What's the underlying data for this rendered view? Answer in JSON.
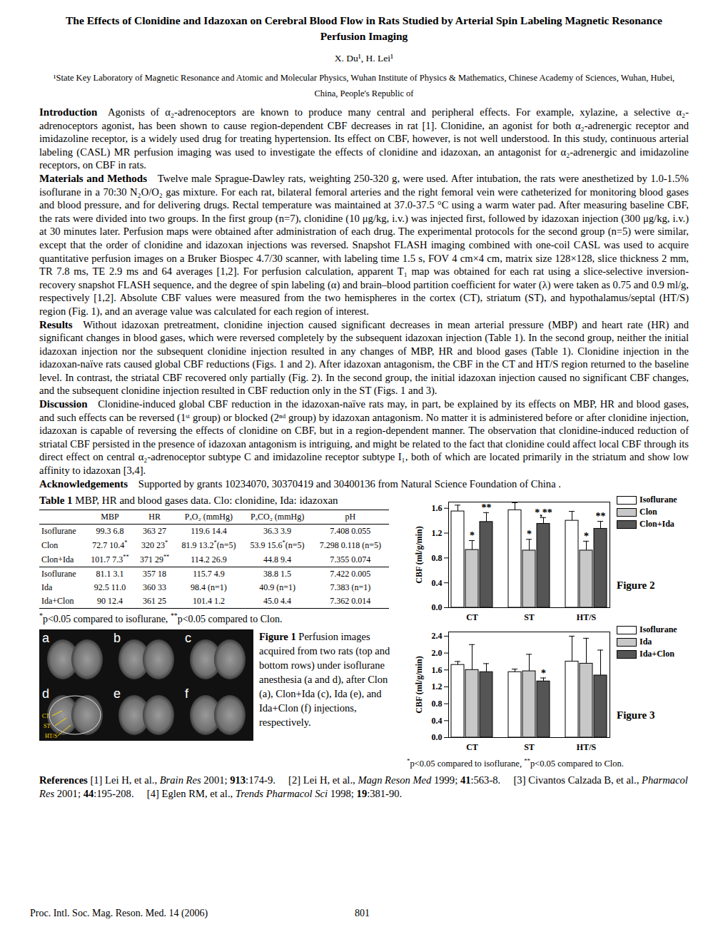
{
  "title": "The Effects of Clonidine and Idazoxan on Cerebral Blood Flow in Rats Studied by Arterial Spin Labeling Magnetic Resonance Perfusion Imaging",
  "authors": "X. Du¹, H. Lei¹",
  "affiliation": "¹State Key Laboratory of Magnetic Resonance and Atomic and Molecular Physics, Wuhan Institute of Physics & Mathematics, Chinese Academy of Sciences, Wuhan, Hubei, China, People's Republic of",
  "sections": [
    {
      "heading": "Introduction",
      "text": "Agonists of α₂-adrenoceptors are known to produce many central and peripheral effects. For example, xylazine, a selective α₂-adrenoceptors agonist, has been shown to cause region-dependent CBF decreases in rat [1]. Clonidine, an agonist for both α₂-adrenergic receptor and imidazoline receptor, is a widely used drug for treating hypertension. Its effect on CBF, however, is not well understood. In this study, continuous arterial labeling (CASL) MR perfusion imaging was used to investigate the effects of clonidine and idazoxan, an antagonist for α₂-adrenergic and imidazoline receptors, on CBF in rats."
    },
    {
      "heading": "Materials and Methods",
      "text": "Twelve male Sprague-Dawley rats, weighting 250-320 g, were used. After intubation, the rats were anesthetized by 1.0-1.5% isoflurane in a 70:30 N₂O/O₂ gas mixture. For each rat, bilateral femoral arteries and the right femoral vein were catheterized for monitoring blood gases and blood pressure, and for delivering drugs. Rectal temperature was maintained at 37.0-37.5 °C using a warm water pad. After measuring baseline CBF, the rats were divided into two groups. In the first group (n=7), clonidine (10 μg/kg, i.v.) was injected first, followed by idazoxan injection (300 μg/kg, i.v.) at 30 minutes later. Perfusion maps were obtained after administration of each drug. The experimental protocols for the second group (n=5) were similar, except that the order of clonidine and idazoxan injections was reversed. Snapshot FLASH imaging combined with one-coil CASL was used to acquire quantitative perfusion images on a Bruker Biospec 4.7/30 scanner, with labeling time 1.5 s, FOV 4 cm×4 cm, matrix size 128×128, slice thickness 2 mm, TR 7.8 ms, TE 2.9 ms and 64 averages [1,2]. For perfusion calculation, apparent T₁ map was obtained for each rat using a slice-selective inversion-recovery snapshot FLASH sequence, and the degree of spin labeling (α) and brain–blood partition coefficient for water (λ) were taken as 0.75 and 0.9 ml/g, respectively [1,2]. Absolute CBF values were measured from the two hemispheres in the cortex (CT), striatum (ST), and hypothalamus/septal (HT/S) region (Fig. 1), and an average value was calculated for each region of interest."
    },
    {
      "heading": "Results",
      "text": "Without idazoxan pretreatment, clonidine injection caused significant decreases in mean arterial pressure (MBP) and heart rate (HR) and significant changes in blood gases, which were reversed completely by the subsequent idazoxan injection (Table 1). In the second group, neither the initial idazoxan injection nor the subsequent clonidine injection resulted in any changes of MBP, HR and blood gases (Table 1). Clonidine injection in the idazoxan-naïve rats caused global CBF reductions (Figs. 1 and 2). After idazoxan antagonism, the CBF in the CT and HT/S region returned to the baseline level. In contrast, the striatal CBF recovered only partially (Fig. 2). In the second group, the initial idazoxan injection caused no significant CBF changes, and the subsequent clonidine injection resulted in CBF reduction only in the ST (Figs. 1 and 3)."
    },
    {
      "heading": "Discussion",
      "text": "Clonidine-induced global CBF reduction in the idazoxan-naïve rats may, in part, be explained by its effects on MBP, HR and blood gases, and such effects can be reversed (1ˢᵗ group) or blocked (2ⁿᵈ group) by idazoxan antagonism. No matter it is administered before or after clonidine injection, idazoxan is capable of reversing the effects of clonidine on CBF, but in a region-dependent manner. The observation that clonidine-induced reduction of striatal CBF persisted in the presence of idazoxan antagonism is intriguing, and might be related to the fact that clonidine could affect local CBF through its direct effect on central α₂-adrenoceptor subtype C and imidazoline receptor subtype I₁, both of which are located primarily in the striatum and show low affinity to idazoxan [3,4]."
    },
    {
      "heading": "Acknowledgements",
      "text": "Supported by grants 10234070, 30370419 and 30400136 from Natural Science Foundation of China ."
    }
  ],
  "table": {
    "label": "Table 1",
    "caption": "MBP, HR and blood gases data. Clo: clonidine, Ida: idazoxan",
    "header": [
      null,
      "MBP",
      "HR",
      "PₐO₂ (mmHg)",
      "PₐCO₂ (mmHg)",
      "pH"
    ],
    "groups": [
      [
        [
          "Isoflurane",
          "99.3 6.8",
          "363 27",
          "119.6 14.4",
          "36.3 3.9",
          "7.408 0.055"
        ],
        [
          "Clon",
          "72.7 10.4*",
          "320 23*",
          "81.9 13.2*(n=5)",
          "53.9 15.6*(n=5)",
          "7.298 0.118 (n=5)"
        ],
        [
          "Clon+Ida",
          "101.7 7.3**",
          "371 29**",
          "114.2 26.9",
          "44.8 9.4",
          "7.355 0.074"
        ]
      ],
      [
        [
          "Isoflurane",
          "81.1 3.1",
          "357 18",
          "115.7 4.9",
          "38.8 1.5",
          "7.422 0.005"
        ],
        [
          "Ida",
          "92.5 11.0",
          "360 33",
          "98.4 (n=1)",
          "40.9 (n=1)",
          "7.383 (n=1)"
        ],
        [
          "Ida+Clon",
          "90 12.4",
          "361 25",
          "101.4 1.2",
          "45.0 4.4",
          "7.362 0.014"
        ]
      ]
    ],
    "footnote": "*p<0.05 compared to isoflurane, **p<0.05 compared to Clon."
  },
  "figure1": {
    "label": "Figure 1",
    "caption": "Perfusion images acquired from two rats (top and bottom rows) under isoflurane anesthesia (a and d), after Clon (a), Clon+Ida (c), Ida (e), and Ida+Clon (f) injections, respectively.",
    "panels": [
      "a",
      "b",
      "c",
      "d",
      "e",
      "f"
    ],
    "roi_labels": [
      "CT",
      "ST",
      "HT/S"
    ]
  },
  "chart_data": [
    {
      "type": "bar",
      "title": "Figure 2",
      "categories": [
        "CT",
        "ST",
        "HT/S"
      ],
      "ylabel": "CBF (ml/g/min)",
      "ylim": [
        0,
        1.7
      ],
      "yticks": [
        {
          "value": 0,
          "label": "0.0"
        },
        {
          "value": 0.4,
          "label": "0.4"
        },
        {
          "value": 0.8,
          "label": "0.8"
        },
        {
          "value": 1.2,
          "label": "1.2"
        },
        {
          "value": 1.6,
          "label": "1.6"
        }
      ],
      "legend": "top-right",
      "series": [
        {
          "name": "Isoflurane",
          "color": "#ffffff",
          "values": [
            1.55,
            1.57,
            1.4
          ],
          "errors": [
            0.1,
            0.12,
            0.15
          ]
        },
        {
          "name": "Clon",
          "color": "#c8c8c8",
          "values": [
            0.93,
            0.92,
            0.92
          ],
          "errors": [
            0.15,
            0.18,
            0.15
          ]
        },
        {
          "name": "Clon+Ida",
          "color": "#555555",
          "values": [
            1.38,
            1.35,
            1.27
          ],
          "errors": [
            0.15,
            0.1,
            0.12
          ]
        }
      ],
      "annotations": [
        {
          "category": "CT",
          "series": "Clon",
          "text": "*"
        },
        {
          "category": "CT",
          "series": "Clon+Ida",
          "text": "**"
        },
        {
          "category": "ST",
          "series": "Clon",
          "text": "*"
        },
        {
          "category": "ST",
          "series": "Clon+Ida",
          "text": "*,**"
        },
        {
          "category": "HT/S",
          "series": "Clon",
          "text": "*"
        },
        {
          "category": "HT/S",
          "series": "Clon+Ida",
          "text": "**"
        }
      ]
    },
    {
      "type": "bar",
      "title": "Figure 3",
      "categories": [
        "CT",
        "ST",
        "HT/S"
      ],
      "ylabel": "CBF (ml/g/min)",
      "ylim": [
        0,
        2.5
      ],
      "yticks": [
        {
          "value": 0,
          "label": "0.0"
        },
        {
          "value": 0.4,
          "label": "0.4"
        },
        {
          "value": 0.8,
          "label": "0.8"
        },
        {
          "value": 1.2,
          "label": "1.2"
        },
        {
          "value": 1.6,
          "label": "1.6"
        },
        {
          "value": 2,
          "label": "2.0"
        },
        {
          "value": 2.4,
          "label": "2.4"
        }
      ],
      "legend": "top-right",
      "series": [
        {
          "name": "Isoflurane",
          "color": "#ffffff",
          "values": [
            1.72,
            1.55,
            1.8
          ],
          "errors": [
            0.08,
            0.07,
            0.6
          ]
        },
        {
          "name": "Ida",
          "color": "#c8c8c8",
          "values": [
            1.6,
            1.57,
            1.75
          ],
          "errors": [
            0.6,
            0.4,
            0.6
          ]
        },
        {
          "name": "Ida+Clon",
          "color": "#555555",
          "values": [
            1.55,
            1.33,
            1.47
          ],
          "errors": [
            0.2,
            0.08,
            0.6
          ]
        }
      ],
      "annotations": [
        {
          "category": "ST",
          "series": "Ida+Clon",
          "text": "*"
        }
      ]
    }
  ],
  "figure_footnote": "*p<0.05 compared to isoflurane, **p<0.05 compared to Clon.",
  "references_label": "References",
  "references": [
    {
      "n": "[1]",
      "authors": "Lei H, et al.,",
      "journal": "Brain Res",
      "year": "2001;",
      "volume": "913",
      "pages": ":174-9."
    },
    {
      "n": "[2]",
      "authors": "Lei H, et al.,",
      "journal": "Magn Reson Med",
      "year": "1999;",
      "volume": "41",
      "pages": ":563-8."
    },
    {
      "n": "[3]",
      "authors": "Civantos Calzada B, et al.,",
      "journal": "Pharmacol Res",
      "year": "2001;",
      "volume": "44",
      "pages": ":195-208."
    },
    {
      "n": "[4]",
      "authors": "Eglen RM, et al.,",
      "journal": "Trends Pharmacol Sci",
      "year": "1998;",
      "volume": "19",
      "pages": ":381-90."
    }
  ],
  "footer": {
    "left": "Proc. Intl. Soc. Mag. Reson. Med. 14 (2006)",
    "page": "801"
  }
}
